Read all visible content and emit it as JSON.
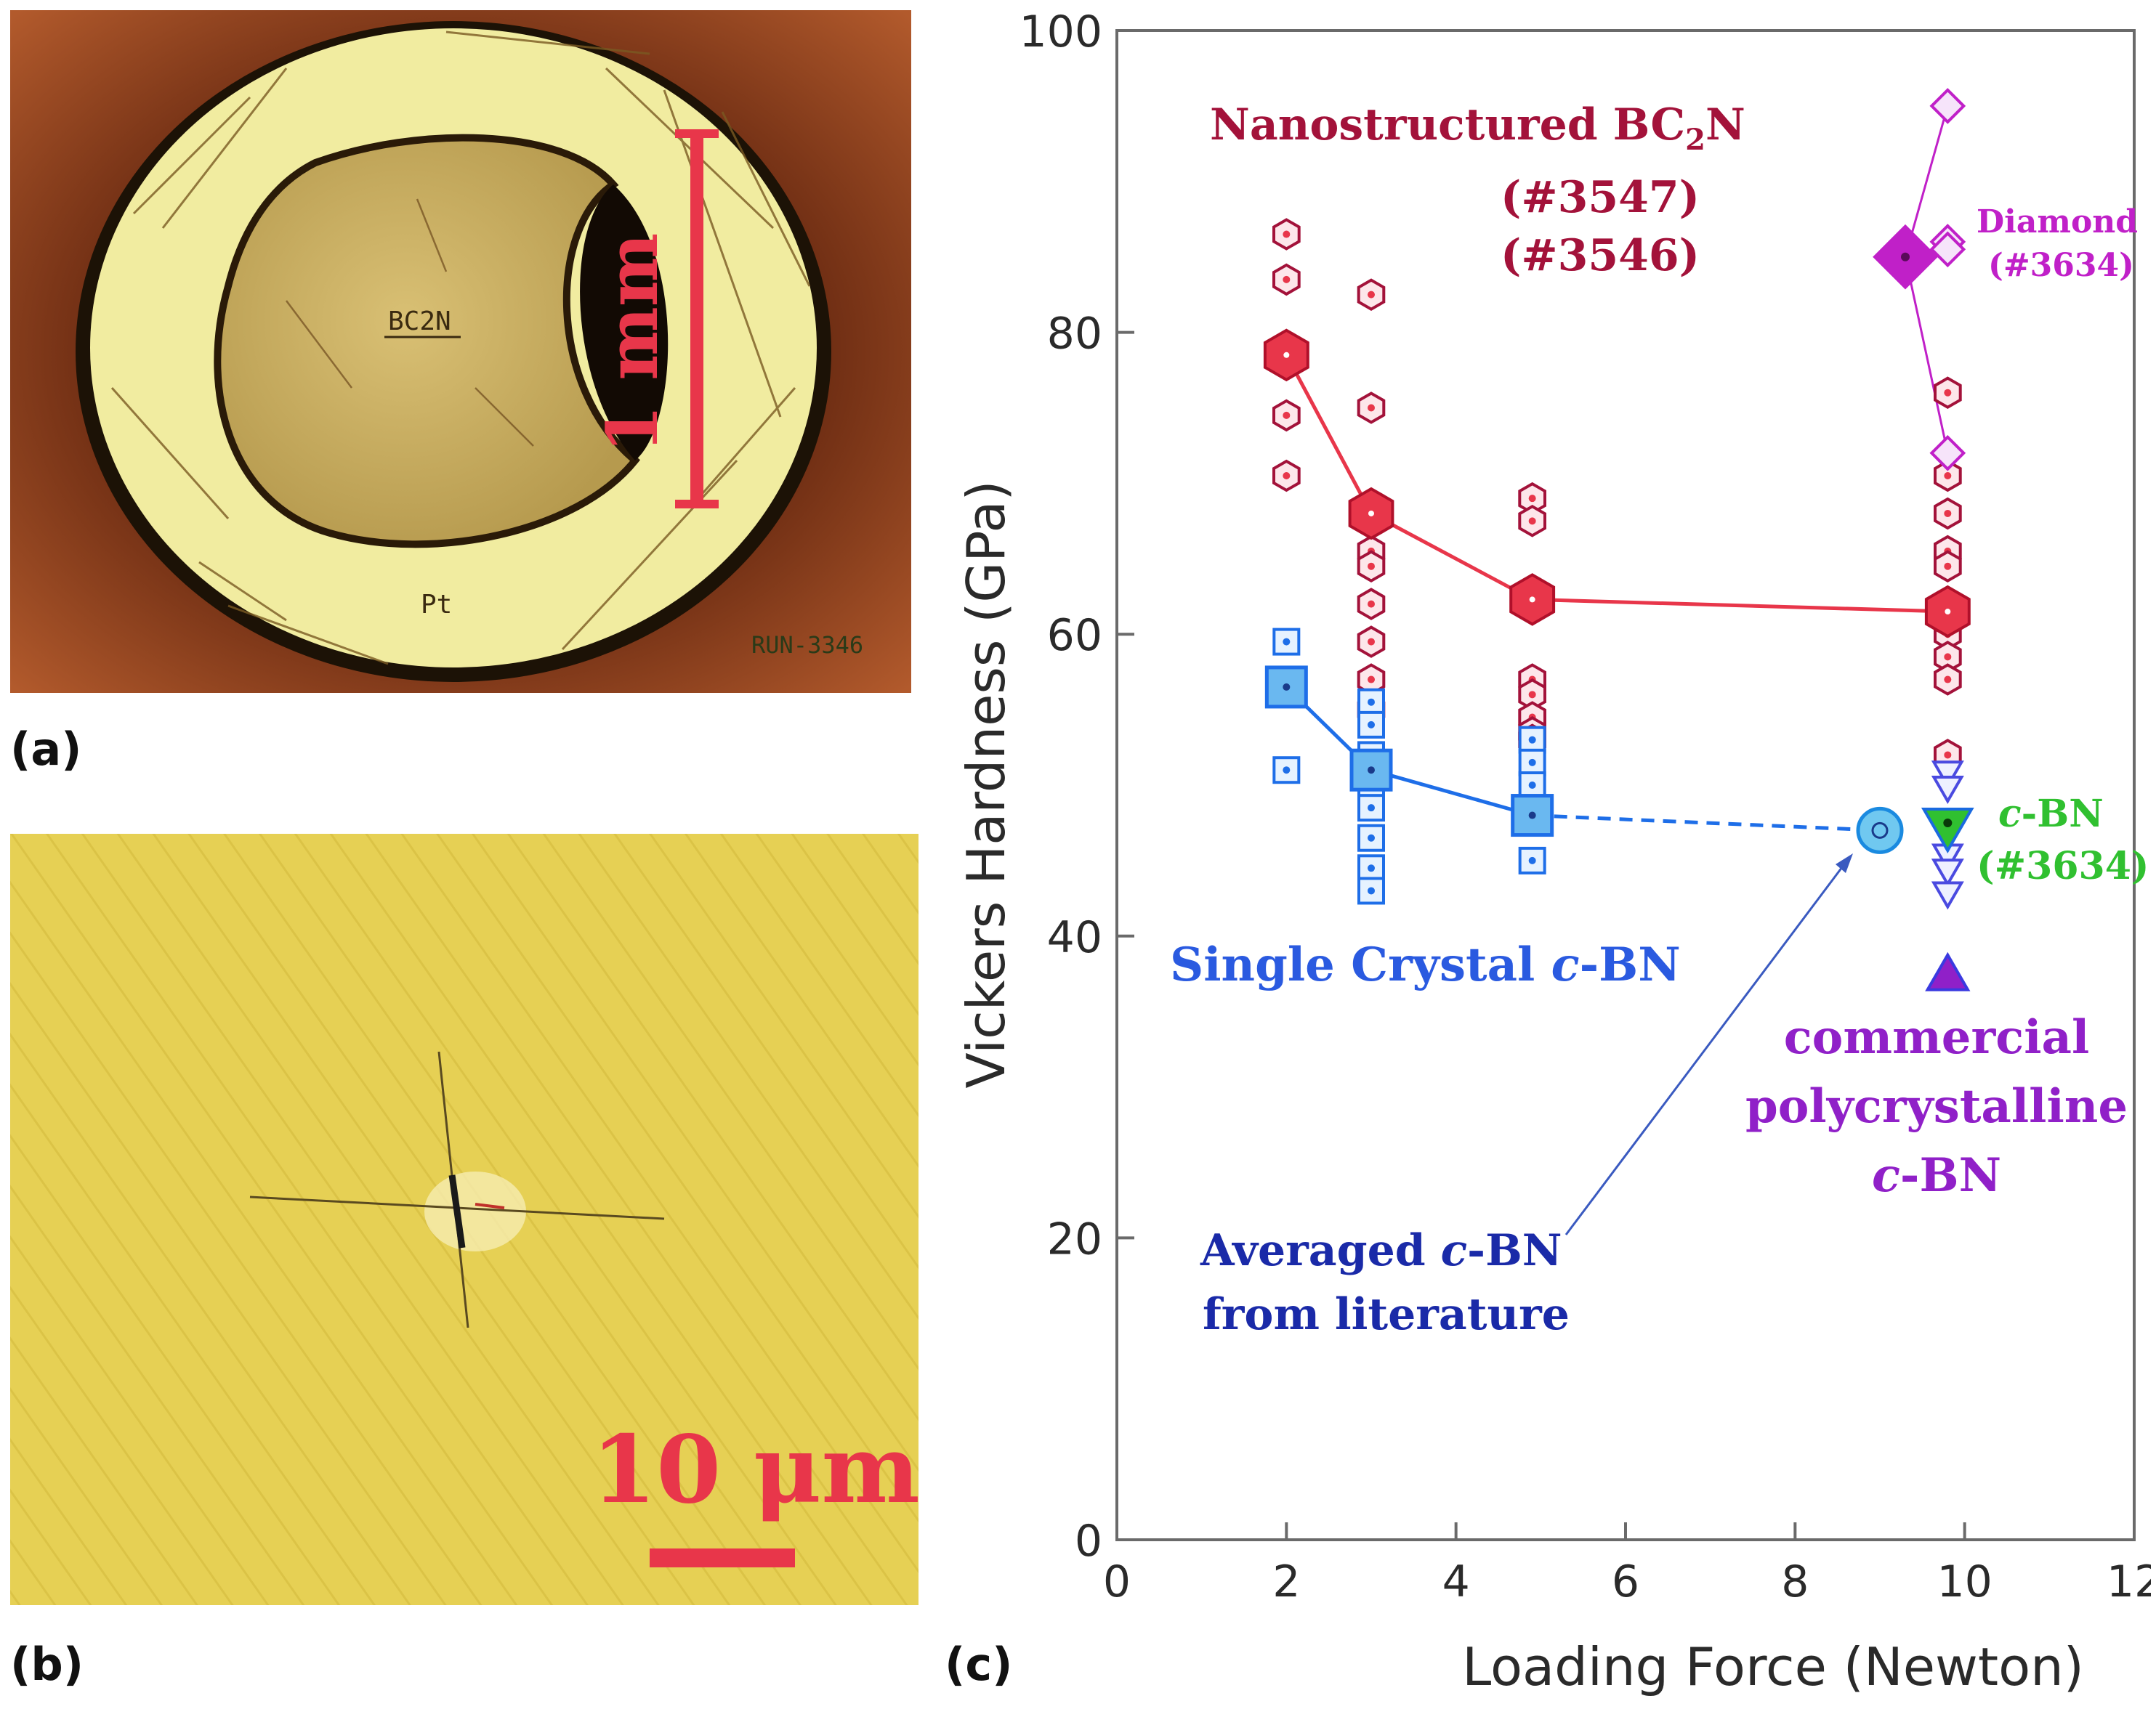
{
  "panels": {
    "a": {
      "label": "(a)",
      "sample_label": "BC2N",
      "shell_label": "Pt",
      "run_label": "RUN-3346",
      "scale_label": "1 mm"
    },
    "b": {
      "label": "(b)",
      "scale_label": "10 μm"
    },
    "c": {
      "label": "(c)"
    }
  },
  "colors": {
    "bc2n": "#e8364a",
    "bc2n_text": "#a3123a",
    "cbn_single": "#1e6ee8",
    "cbn_avg": "#1a2aa8",
    "diamond": "#c020c8",
    "cbn_3634": "#30c030",
    "commercial": "#9020c8"
  },
  "chart_data": {
    "type": "scatter",
    "xlabel": "Loading Force (Newton)",
    "ylabel": "Vickers Hardness (GPa)",
    "xlim": [
      0,
      12
    ],
    "ylim": [
      0,
      100
    ],
    "xticks": [
      0,
      2,
      4,
      6,
      8,
      10,
      12
    ],
    "yticks": [
      0,
      20,
      40,
      60,
      80,
      100
    ],
    "annotations": {
      "bc2n_title": "Nanostructured BC",
      "bc2n_sub": "2",
      "bc2n_tail": "N",
      "bc2n_run1": "(#3547)",
      "bc2n_run2": "(#3546)",
      "diamond_title": "Diamond",
      "diamond_run": "(#3634)",
      "cbn_prefix": "c",
      "cbn_suffix": "-BN",
      "cbn_run": "(#3634)",
      "single_crystal": "Single Crystal ",
      "averaged_line1": "Averaged ",
      "averaged_line2": "from literature",
      "commercial_line1": "commercial",
      "commercial_line2": "polycrystalline"
    },
    "series": [
      {
        "name": "Nanostructured BC2N (individual)",
        "marker": "hexagon-open",
        "points": [
          [
            2,
            86.5
          ],
          [
            2,
            83.5
          ],
          [
            2,
            78
          ],
          [
            2,
            74.5
          ],
          [
            2,
            70.5
          ],
          [
            3,
            82.5
          ],
          [
            3,
            75
          ],
          [
            3,
            68
          ],
          [
            3,
            65.5
          ],
          [
            3,
            64.5
          ],
          [
            3,
            62
          ],
          [
            3,
            59.5
          ],
          [
            3,
            57
          ],
          [
            3,
            55
          ],
          [
            4.9,
            69
          ],
          [
            4.9,
            67.5
          ],
          [
            4.9,
            62
          ],
          [
            4.9,
            57
          ],
          [
            4.9,
            56
          ],
          [
            4.9,
            54.5
          ],
          [
            4.9,
            53.5
          ],
          [
            4.9,
            53
          ],
          [
            9.8,
            76
          ],
          [
            9.8,
            70.5
          ],
          [
            9.8,
            68
          ],
          [
            9.8,
            65.5
          ],
          [
            9.8,
            64.5
          ],
          [
            9.8,
            62
          ],
          [
            9.8,
            61
          ],
          [
            9.8,
            60
          ],
          [
            9.8,
            58.5
          ],
          [
            9.8,
            57
          ],
          [
            9.8,
            52
          ]
        ]
      },
      {
        "name": "Nanostructured BC2N (average)",
        "marker": "hexagon-filled",
        "points": [
          [
            2,
            78.5
          ],
          [
            3,
            68
          ],
          [
            4.9,
            62.3
          ],
          [
            9.8,
            61.5
          ]
        ]
      },
      {
        "name": "Single Crystal c-BN (individual)",
        "marker": "square-open",
        "points": [
          [
            2,
            59.5
          ],
          [
            2,
            57
          ],
          [
            2,
            51
          ],
          [
            3,
            55.5
          ],
          [
            3,
            54
          ],
          [
            3,
            52
          ],
          [
            3,
            50
          ],
          [
            3,
            48.5
          ],
          [
            3,
            46.5
          ],
          [
            3,
            44.5
          ],
          [
            3,
            43
          ],
          [
            4.9,
            53
          ],
          [
            4.9,
            51.5
          ],
          [
            4.9,
            50
          ],
          [
            4.9,
            45
          ]
        ]
      },
      {
        "name": "Single Crystal c-BN (average)",
        "marker": "square-filled",
        "points": [
          [
            2,
            56.5
          ],
          [
            3,
            51
          ],
          [
            4.9,
            48
          ]
        ]
      },
      {
        "name": "Averaged c-BN from literature",
        "marker": "circle",
        "points": [
          [
            9,
            47
          ]
        ]
      },
      {
        "name": "Diamond (#3634)",
        "marker": "diamond",
        "points": [
          [
            9.8,
            95
          ],
          [
            9.8,
            86
          ],
          [
            9.8,
            85.5
          ],
          [
            9.8,
            72
          ]
        ],
        "average": [
          [
            9.3,
            85
          ]
        ]
      },
      {
        "name": "c-BN (#3634)",
        "marker": "triangle-down",
        "points": [
          [
            9.8,
            51
          ],
          [
            9.8,
            50
          ],
          [
            9.8,
            45.5
          ],
          [
            9.8,
            44.5
          ],
          [
            9.8,
            43
          ]
        ],
        "average": [
          [
            9.8,
            47.5
          ]
        ]
      },
      {
        "name": "commercial polycrystalline c-BN",
        "marker": "triangle-up-filled",
        "points": [
          [
            9.8,
            37.5
          ]
        ]
      }
    ]
  }
}
